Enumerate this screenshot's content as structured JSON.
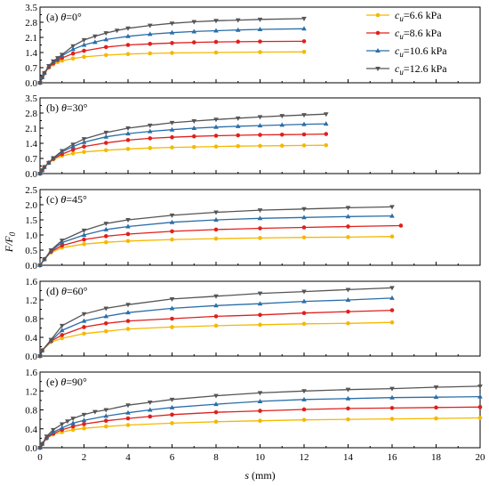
{
  "chart_data": {
    "type": "line",
    "ylabel": "F/F0",
    "xlabel": "s (mm)",
    "xlim": [
      0,
      20
    ],
    "xticks": [
      0,
      2,
      4,
      6,
      8,
      10,
      12,
      14,
      16,
      18,
      20
    ],
    "legend": {
      "placement": "top-right",
      "entries": [
        {
          "symbol": "c",
          "sub": "u",
          "text": "=6.6 kPa",
          "color": "#f5b800",
          "marker": "circle"
        },
        {
          "symbol": "c",
          "sub": "u",
          "text": "=8.6 kPa",
          "color": "#e0201c",
          "marker": "circle"
        },
        {
          "symbol": "c",
          "sub": "u",
          "text": "=10.6 kPa",
          "color": "#2a6ea8",
          "marker": "triangle-up"
        },
        {
          "symbol": "c",
          "sub": "u",
          "text": "=12.6 kPa",
          "color": "#555555",
          "marker": "triangle-down"
        }
      ]
    },
    "panels": [
      {
        "label": "(a)",
        "theta_symbol": "θ",
        "theta_value": "=0°",
        "ylim": [
          0,
          3.5
        ],
        "yticks": [
          "0.0",
          "0.7",
          "1.4",
          "2.1",
          "2.8",
          "3.5"
        ],
        "series": [
          {
            "x": [
              0,
              0.1,
              0.2,
              0.4,
              0.6,
              0.8,
              1,
              1.5,
              2,
              3,
              4,
              5,
              6,
              8,
              10,
              12
            ],
            "y": [
              0,
              0.25,
              0.45,
              0.7,
              0.85,
              0.95,
              1.02,
              1.12,
              1.2,
              1.28,
              1.33,
              1.36,
              1.38,
              1.4,
              1.42,
              1.43
            ]
          },
          {
            "x": [
              0,
              0.1,
              0.2,
              0.4,
              0.6,
              0.8,
              1,
              1.5,
              2,
              3,
              4,
              5,
              6,
              7,
              8,
              9,
              10,
              12
            ],
            "y": [
              0,
              0.25,
              0.45,
              0.72,
              0.9,
              1.05,
              1.15,
              1.35,
              1.48,
              1.65,
              1.75,
              1.8,
              1.84,
              1.87,
              1.89,
              1.9,
              1.91,
              1.92
            ]
          },
          {
            "x": [
              0,
              0.1,
              0.2,
              0.4,
              0.6,
              0.8,
              1,
              1.5,
              2,
              2.5,
              3,
              4,
              5,
              6,
              7,
              8,
              9,
              10,
              12
            ],
            "y": [
              0,
              0.25,
              0.45,
              0.75,
              0.95,
              1.1,
              1.25,
              1.55,
              1.75,
              1.88,
              2.0,
              2.15,
              2.25,
              2.32,
              2.37,
              2.41,
              2.44,
              2.47,
              2.5
            ]
          },
          {
            "x": [
              0,
              0.1,
              0.2,
              0.4,
              0.6,
              0.8,
              1,
              1.5,
              2,
              2.5,
              3,
              3.5,
              4,
              5,
              6,
              7,
              8,
              9,
              10,
              12
            ],
            "y": [
              0,
              0.25,
              0.45,
              0.78,
              1.0,
              1.15,
              1.3,
              1.7,
              1.98,
              2.15,
              2.3,
              2.42,
              2.52,
              2.65,
              2.75,
              2.82,
              2.87,
              2.9,
              2.93,
              2.97
            ]
          }
        ]
      },
      {
        "label": "(b)",
        "theta_symbol": "θ",
        "theta_value": "=30°",
        "ylim": [
          0,
          3.5
        ],
        "yticks": [
          "0.0",
          "0.7",
          "1.4",
          "2.1",
          "2.8",
          "3.5"
        ],
        "series": [
          {
            "x": [
              0,
              0.1,
              0.2,
              0.4,
              0.6,
              1,
              1.5,
              2,
              3,
              4,
              5,
              6,
              7,
              8,
              9,
              10,
              11,
              12,
              13
            ],
            "y": [
              0,
              0.15,
              0.3,
              0.5,
              0.65,
              0.82,
              0.93,
              1.0,
              1.08,
              1.14,
              1.18,
              1.21,
              1.23,
              1.25,
              1.27,
              1.28,
              1.29,
              1.3,
              1.31
            ]
          },
          {
            "x": [
              0,
              0.1,
              0.2,
              0.4,
              0.6,
              1,
              1.5,
              2,
              3,
              4,
              5,
              6,
              7,
              8,
              9,
              10,
              11,
              12,
              13
            ],
            "y": [
              0,
              0.15,
              0.3,
              0.5,
              0.68,
              0.9,
              1.1,
              1.25,
              1.42,
              1.55,
              1.63,
              1.68,
              1.72,
              1.75,
              1.77,
              1.79,
              1.8,
              1.81,
              1.83
            ]
          },
          {
            "x": [
              0,
              0.1,
              0.2,
              0.4,
              0.6,
              1,
              1.5,
              2,
              3,
              4,
              5,
              6,
              7,
              8,
              9,
              10,
              11,
              12,
              13
            ],
            "y": [
              0,
              0.15,
              0.3,
              0.5,
              0.7,
              1.0,
              1.25,
              1.45,
              1.7,
              1.85,
              1.95,
              2.03,
              2.1,
              2.15,
              2.19,
              2.22,
              2.25,
              2.28,
              2.3
            ]
          },
          {
            "x": [
              0,
              0.1,
              0.2,
              0.4,
              0.6,
              1,
              1.5,
              2,
              3,
              4,
              5,
              6,
              7,
              8,
              9,
              10,
              11,
              12,
              13
            ],
            "y": [
              0,
              0.15,
              0.3,
              0.5,
              0.72,
              1.05,
              1.35,
              1.6,
              1.9,
              2.1,
              2.23,
              2.35,
              2.43,
              2.5,
              2.56,
              2.62,
              2.67,
              2.71,
              2.75
            ]
          }
        ]
      },
      {
        "label": "(c)",
        "theta_symbol": "θ",
        "theta_value": "=45°",
        "ylim": [
          0,
          2.5
        ],
        "yticks": [
          "0.0",
          "0.5",
          "1.0",
          "1.5",
          "2.0",
          "2.5"
        ],
        "series": [
          {
            "x": [
              0,
              0.2,
              0.5,
              1,
              2,
              3,
              4,
              6,
              8,
              10,
              12,
              14,
              16
            ],
            "y": [
              0,
              0.2,
              0.42,
              0.58,
              0.7,
              0.76,
              0.8,
              0.85,
              0.88,
              0.9,
              0.92,
              0.93,
              0.95
            ]
          },
          {
            "x": [
              0,
              0.2,
              0.5,
              1,
              2,
              3,
              4,
              6,
              8,
              10,
              12,
              14,
              16.4
            ],
            "y": [
              0,
              0.2,
              0.45,
              0.65,
              0.85,
              0.96,
              1.03,
              1.12,
              1.18,
              1.22,
              1.25,
              1.28,
              1.31
            ]
          },
          {
            "x": [
              0,
              0.2,
              0.5,
              1,
              2,
              3,
              4,
              6,
              8,
              10,
              12,
              14,
              16
            ],
            "y": [
              0,
              0.2,
              0.48,
              0.75,
              1.0,
              1.18,
              1.28,
              1.42,
              1.5,
              1.55,
              1.58,
              1.61,
              1.63
            ]
          },
          {
            "x": [
              0,
              0.2,
              0.5,
              1,
              2,
              3,
              4,
              6,
              8,
              10,
              12,
              14,
              16
            ],
            "y": [
              0,
              0.2,
              0.5,
              0.82,
              1.15,
              1.38,
              1.5,
              1.65,
              1.75,
              1.82,
              1.86,
              1.9,
              1.93
            ]
          }
        ]
      },
      {
        "label": "(d)",
        "theta_symbol": "θ",
        "theta_value": "=60°",
        "ylim": [
          0,
          1.6
        ],
        "yticks": [
          "0.0",
          "0.4",
          "0.8",
          "1.2",
          "1.6"
        ],
        "series": [
          {
            "x": [
              0,
              0.1,
              0.5,
              1,
              2,
              3,
              4,
              6,
              8,
              10,
              12,
              14,
              16
            ],
            "y": [
              0,
              0.12,
              0.3,
              0.38,
              0.48,
              0.53,
              0.58,
              0.62,
              0.65,
              0.67,
              0.69,
              0.7,
              0.72
            ]
          },
          {
            "x": [
              0,
              0.1,
              0.5,
              1,
              2,
              3,
              4,
              6,
              8,
              10,
              12,
              14,
              16
            ],
            "y": [
              0,
              0.12,
              0.32,
              0.45,
              0.62,
              0.7,
              0.75,
              0.8,
              0.85,
              0.88,
              0.92,
              0.95,
              0.98
            ]
          },
          {
            "x": [
              0,
              0.1,
              0.5,
              1,
              2,
              3,
              4,
              6,
              8,
              10,
              12,
              14,
              16
            ],
            "y": [
              0,
              0.12,
              0.33,
              0.55,
              0.75,
              0.85,
              0.93,
              1.02,
              1.08,
              1.12,
              1.17,
              1.2,
              1.24
            ]
          },
          {
            "x": [
              0,
              0.1,
              0.5,
              1,
              2,
              3,
              4,
              6,
              8,
              10,
              12,
              14,
              16
            ],
            "y": [
              0,
              0.12,
              0.35,
              0.65,
              0.9,
              1.02,
              1.1,
              1.22,
              1.28,
              1.34,
              1.38,
              1.42,
              1.46
            ]
          }
        ]
      },
      {
        "label": "(e)",
        "theta_symbol": "θ",
        "theta_value": "=90°",
        "ylim": [
          0,
          1.6
        ],
        "yticks": [
          "0.0",
          "0.4",
          "0.8",
          "1.2",
          "1.6"
        ],
        "series": [
          {
            "x": [
              0,
              0.1,
              0.3,
              0.6,
              1,
              1.5,
              2,
              3,
              4,
              6,
              8,
              10,
              12,
              14,
              16,
              18,
              20
            ],
            "y": [
              0,
              0.08,
              0.2,
              0.28,
              0.33,
              0.38,
              0.41,
              0.45,
              0.48,
              0.52,
              0.55,
              0.57,
              0.59,
              0.6,
              0.61,
              0.62,
              0.63
            ]
          },
          {
            "x": [
              0,
              0.1,
              0.3,
              0.6,
              1,
              1.5,
              2,
              3,
              4,
              5,
              6,
              8,
              10,
              12,
              14,
              16,
              18,
              20
            ],
            "y": [
              0,
              0.08,
              0.2,
              0.3,
              0.38,
              0.45,
              0.5,
              0.57,
              0.62,
              0.66,
              0.7,
              0.75,
              0.78,
              0.81,
              0.83,
              0.84,
              0.85,
              0.86
            ]
          },
          {
            "x": [
              0,
              0.1,
              0.3,
              0.6,
              1,
              1.5,
              2,
              3,
              4,
              5,
              6,
              8,
              10,
              12,
              14,
              16,
              18,
              20
            ],
            "y": [
              0,
              0.08,
              0.22,
              0.33,
              0.42,
              0.52,
              0.58,
              0.67,
              0.74,
              0.8,
              0.85,
              0.92,
              0.98,
              1.02,
              1.04,
              1.06,
              1.07,
              1.08
            ]
          },
          {
            "x": [
              0,
              0.1,
              0.3,
              0.6,
              1,
              1.25,
              1.5,
              2,
              2.5,
              3,
              4,
              5,
              6,
              8,
              10,
              12,
              14,
              16,
              18,
              20
            ],
            "y": [
              0,
              0.08,
              0.24,
              0.38,
              0.5,
              0.56,
              0.62,
              0.7,
              0.76,
              0.8,
              0.9,
              0.96,
              1.02,
              1.1,
              1.16,
              1.2,
              1.23,
              1.25,
              1.28,
              1.3
            ]
          }
        ]
      }
    ]
  }
}
